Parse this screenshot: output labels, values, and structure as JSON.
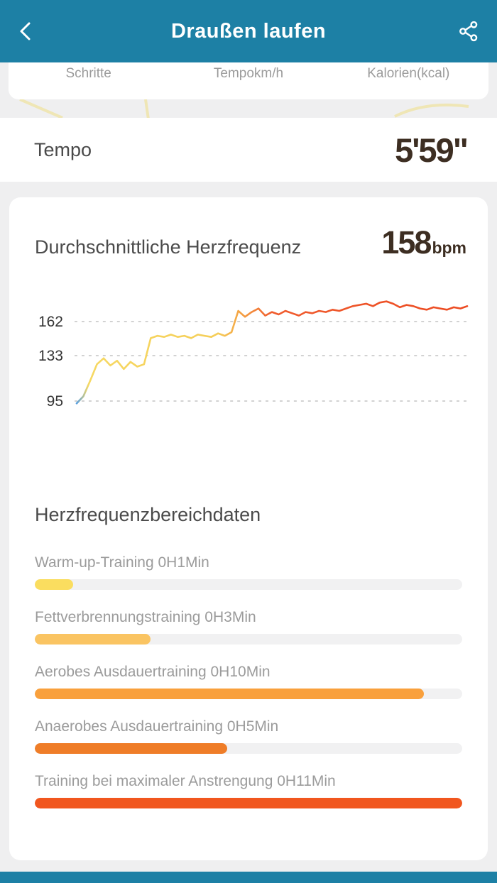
{
  "header": {
    "title": "Draußen laufen",
    "back_icon": "chevron-left",
    "share_icon": "share-nodes"
  },
  "stats_row": {
    "labels": [
      "Schritte",
      "Tempokm/h",
      "Kalorien(kcal)"
    ]
  },
  "tempo": {
    "label": "Tempo",
    "value": "5'59\""
  },
  "heart_rate": {
    "title": "Durchschnittliche Herzfrequenz",
    "value": "158",
    "unit": "bpm"
  },
  "zones": {
    "title": "Herzfrequenzbereichdaten",
    "items": [
      {
        "label": "Warm-up-Training 0H1Min",
        "percent": 9,
        "color": "#fadd5f"
      },
      {
        "label": "Fettverbrennungstraining 0H3Min",
        "percent": 27,
        "color": "#fac462"
      },
      {
        "label": "Aerobes Ausdauertraining 0H10Min",
        "percent": 91,
        "color": "#f9a03c"
      },
      {
        "label": "Anaerobes Ausdauertraining 0H5Min",
        "percent": 45,
        "color": "#ef7d28"
      },
      {
        "label": "Training bei maximaler Anstrengung 0H11Min",
        "percent": 100,
        "color": "#f1561e"
      }
    ]
  },
  "colors": {
    "header": "#1d80a5",
    "accent_number": "#3d2e22",
    "line_start": "#5aa0e0",
    "line_low": "#f6d964",
    "line_mid": "#f49a40",
    "line_high": "#ec4a21"
  },
  "chart_data": {
    "type": "line",
    "title": "Durchschnittliche Herzfrequenz",
    "ylabel": "bpm",
    "average_bpm": 158,
    "y_ticks": [
      162,
      133,
      95
    ],
    "ylim": [
      88,
      190
    ],
    "grid": "dashed-horizontal",
    "legend": "none",
    "series": [
      {
        "name": "Herzfrequenz",
        "values": [
          93,
          99,
          112,
          126,
          131,
          125,
          129,
          122,
          128,
          124,
          126,
          148,
          150,
          149,
          151,
          149,
          150,
          148,
          151,
          150,
          149,
          152,
          150,
          153,
          171,
          166,
          170,
          173,
          167,
          170,
          168,
          171,
          169,
          167,
          170,
          169,
          171,
          170,
          172,
          171,
          173,
          175,
          176,
          177,
          175,
          178,
          179,
          177,
          174,
          176,
          175,
          173,
          172,
          174,
          173,
          172,
          174,
          173,
          175
        ]
      }
    ]
  }
}
